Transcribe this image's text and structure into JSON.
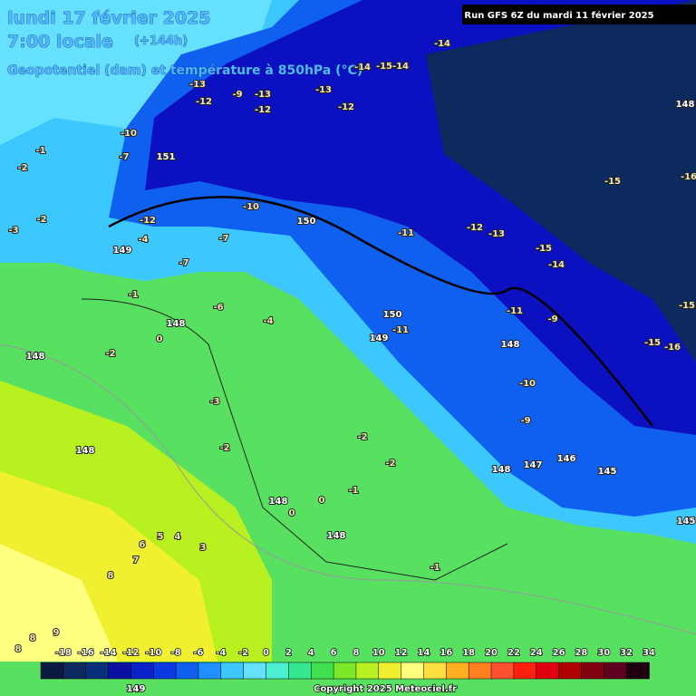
{
  "header": {
    "date": "lundi 17 février 2025",
    "time": "7:00 locale",
    "lead": "(+144h)",
    "field": "Geopotentiel (dam) et température à 850hPa (°C)",
    "run": "Run GFS 6Z du mardi 11 février 2025"
  },
  "legend": {
    "ticks": [
      -18,
      -16,
      -14,
      -12,
      -10,
      -8,
      -6,
      -4,
      -2,
      0,
      2,
      4,
      6,
      8,
      10,
      12,
      14,
      16,
      18,
      20,
      22,
      24,
      26,
      28,
      30,
      32,
      34
    ],
    "colors": [
      "#0a1a40",
      "#0d2a5e",
      "#06307a",
      "#0b10a0",
      "#0a20c8",
      "#0a3ae0",
      "#1060f0",
      "#1e90ff",
      "#3cc8ff",
      "#66e0ff",
      "#4af0d0",
      "#36e890",
      "#40e050",
      "#78e828",
      "#b8f020",
      "#f0f030",
      "#ffff80",
      "#ffe040",
      "#ffb020",
      "#ff8020",
      "#ff5030",
      "#ff2010",
      "#e00010",
      "#b00000",
      "#800010",
      "#600020",
      "#200010"
    ]
  },
  "labels": [
    -13,
    -12,
    -13,
    -12,
    -13,
    -12,
    -14,
    -14,
    -15,
    -14,
    151,
    -10,
    150,
    -7,
    -7,
    -11,
    -12,
    -13,
    -15,
    -14,
    -15,
    -16,
    148,
    -6,
    -4,
    150,
    -11,
    149,
    -11,
    -9,
    148,
    -10,
    -9,
    148,
    147,
    146,
    145,
    -15,
    -16,
    -15,
    -2,
    -3,
    -1,
    -2,
    -1,
    0,
    148,
    -2,
    148,
    -3,
    -2,
    -2,
    -2,
    148,
    148,
    0,
    0,
    -1,
    148,
    -1,
    6,
    5,
    4,
    3,
    7,
    8,
    8,
    9,
    8,
    145,
    149,
    -4,
    -12,
    -7,
    -9,
    -10,
    149
  ],
  "copyright": "Copyright 2025 Meteociel.fr"
}
